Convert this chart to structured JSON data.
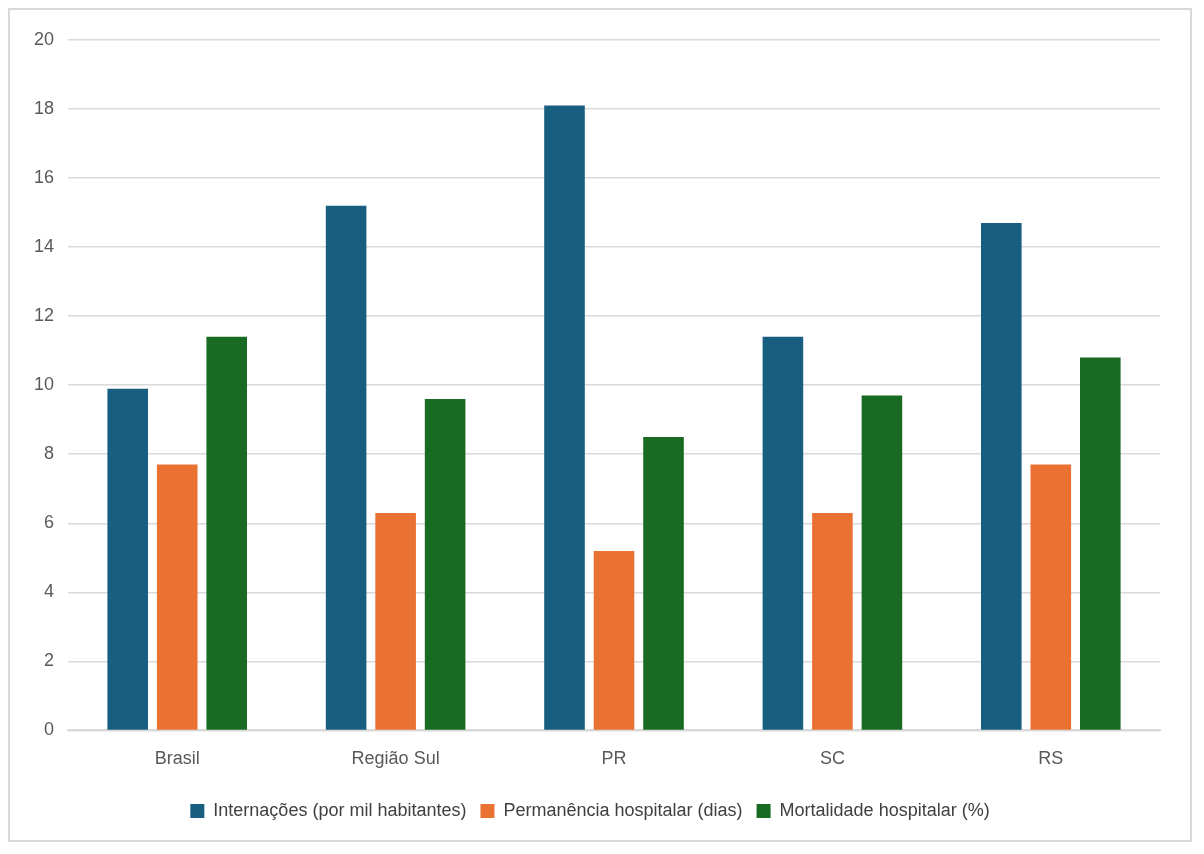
{
  "chart_data": {
    "type": "bar",
    "categories": [
      "Brasil",
      "Região Sul",
      "PR",
      "SC",
      "RS"
    ],
    "series": [
      {
        "name": "Internações (por mil habitantes)",
        "color": "#175e80",
        "values": [
          9.9,
          15.2,
          18.1,
          11.4,
          14.7
        ]
      },
      {
        "name": "Permanência hospitalar (dias)",
        "color": "#e97132",
        "values": [
          7.7,
          6.3,
          5.2,
          6.3,
          7.7
        ]
      },
      {
        "name": "Mortalidade hospitalar (%)",
        "color": "#196b24",
        "values": [
          11.4,
          9.6,
          8.5,
          9.7,
          10.8
        ]
      }
    ],
    "ylim": [
      0,
      20
    ],
    "yticks": [
      0,
      2,
      4,
      6,
      8,
      10,
      12,
      14,
      16,
      18,
      20
    ],
    "grid": "y",
    "legend": "bottom"
  }
}
